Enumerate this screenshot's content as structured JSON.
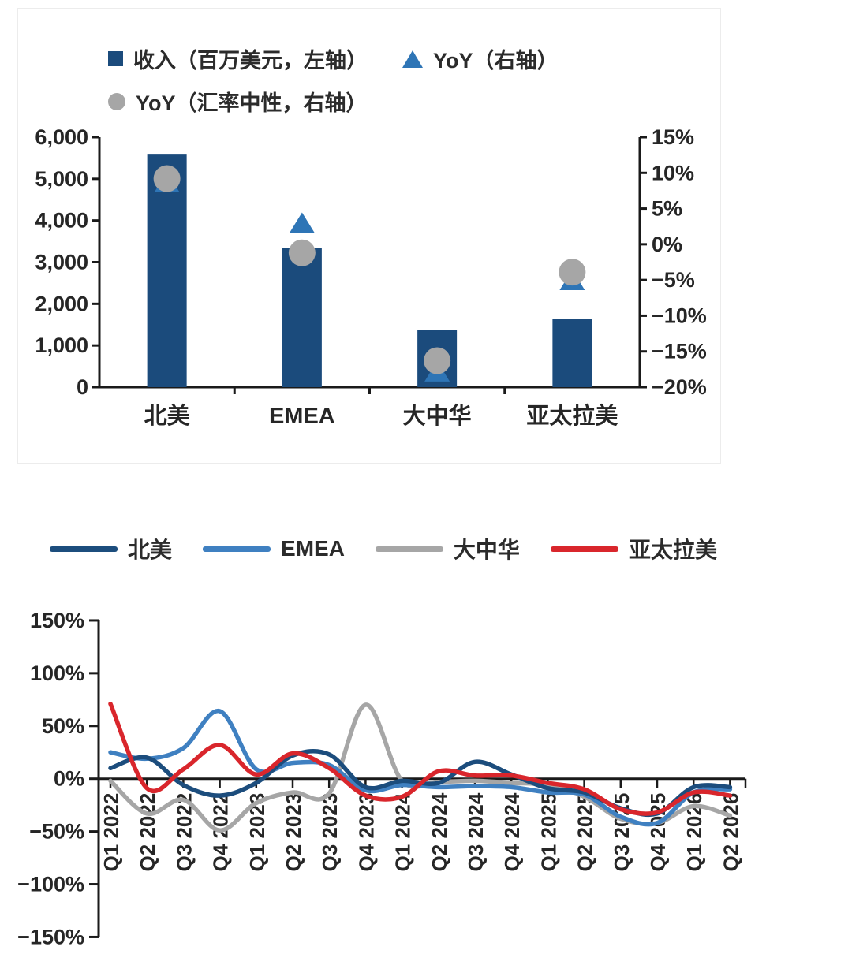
{
  "page": {
    "background": "#ffffff"
  },
  "panels": {
    "top_border_color": "#ececec",
    "axis_color": "#1a1a1a",
    "tick_label_color": "#262626"
  },
  "chart_data": [
    {
      "type": "bar",
      "title": "",
      "categories": [
        "北美",
        "EMEA",
        "大中华",
        "亚太拉美"
      ],
      "series": [
        {
          "name": "收入（百万美元，左轴）",
          "type": "bar",
          "axis": "left",
          "marker": "square",
          "color": "#1b4b7c",
          "values": [
            5600,
            3350,
            1380,
            1630
          ]
        },
        {
          "name": "YoY（右轴）",
          "type": "marker",
          "axis": "right",
          "marker": "triangle",
          "color": "#2e75b6",
          "values": [
            8.5,
            2.8,
            -18,
            -5.2
          ]
        },
        {
          "name": "YoY（汇率中性，右轴）",
          "type": "marker",
          "axis": "right",
          "marker": "circle",
          "color": "#a6a6a6",
          "values": [
            9.2,
            -1.2,
            -16.3,
            -3.9
          ]
        }
      ],
      "left_axis": {
        "min": 0,
        "max": 6000,
        "step": 1000,
        "tick_labels": [
          "0",
          "1,000",
          "2,000",
          "3,000",
          "4,000",
          "5,000",
          "6,000"
        ]
      },
      "right_axis": {
        "min": -20,
        "max": 15,
        "step": 5,
        "tick_labels": [
          "15%",
          "10%",
          "5%",
          "0%",
          "−5%",
          "−10%",
          "−15%",
          "−20%"
        ]
      },
      "grid": false,
      "legend_position": "top-left"
    },
    {
      "type": "line",
      "title": "",
      "smooth": true,
      "categories": [
        "Q1 2022",
        "Q2 2022",
        "Q3 2022",
        "Q4 2022",
        "Q1 2023",
        "Q2 2023",
        "Q3 2023",
        "Q4 2023",
        "Q1 2024",
        "Q2 2024",
        "Q3 2024",
        "Q4 2024",
        "Q1 2025",
        "Q2 2025",
        "Q3 2025",
        "Q4 2025",
        "Q1 2026",
        "Q2 2026"
      ],
      "series": [
        {
          "name": "北美",
          "color": "#1c4d7d",
          "values": [
            10,
            20,
            -6,
            -16,
            -4,
            22,
            23,
            -8,
            -2,
            -4,
            16,
            4,
            -9,
            -13,
            -28,
            -33,
            -8,
            -8
          ]
        },
        {
          "name": "EMEA",
          "color": "#3f80c1",
          "values": [
            25,
            19,
            29,
            64,
            9,
            15,
            13,
            -11,
            -6,
            -8,
            -7,
            -8,
            -13,
            -15,
            -36,
            -42,
            -13,
            -10
          ]
        },
        {
          "name": "大中华",
          "color": "#a6a6a6",
          "values": [
            -2,
            -33,
            -20,
            -49,
            -23,
            -13,
            -14,
            70,
            -2,
            -3,
            -2,
            -4,
            -6,
            -17,
            -38,
            -42,
            -26,
            -35
          ]
        },
        {
          "name": "亚太拉美",
          "color": "#d9262c",
          "values": [
            71,
            -9,
            9,
            32,
            4,
            24,
            10,
            -16,
            -17,
            7,
            3,
            3,
            -4,
            -10,
            -29,
            -32,
            -13,
            -16
          ]
        }
      ],
      "y_axis": {
        "min": -150,
        "max": 150,
        "step": 50,
        "tick_labels": [
          "150%",
          "100%",
          "50%",
          "0%",
          "−50%",
          "−100%",
          "−150%"
        ]
      },
      "grid": false,
      "legend_position": "top"
    }
  ]
}
